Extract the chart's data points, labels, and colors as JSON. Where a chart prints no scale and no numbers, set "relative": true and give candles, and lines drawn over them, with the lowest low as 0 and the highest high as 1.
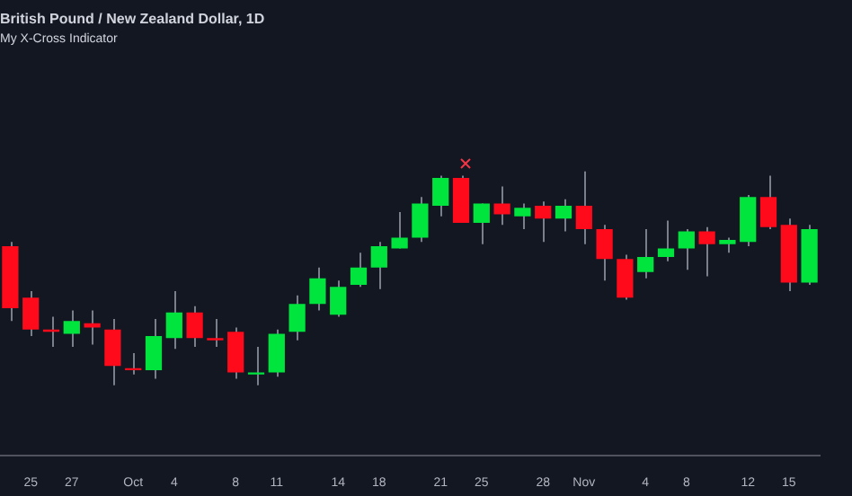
{
  "chart_data": {
    "type": "candlestick",
    "title": "British Pound / New Zealand Dollar, 1D",
    "subtitle": "My X-Cross Indicator",
    "relative": true,
    "grid": false,
    "legend": false,
    "categories": [
      null,
      "25",
      null,
      "27",
      null,
      null,
      "Oct",
      null,
      "4",
      null,
      null,
      "8",
      null,
      "11",
      null,
      null,
      "14",
      null,
      "18",
      null,
      null,
      "21",
      null,
      "25",
      null,
      null,
      "28",
      null,
      "Nov",
      null,
      null,
      "4",
      null,
      "8",
      null,
      null,
      "12",
      null,
      "15",
      null
    ],
    "colors": [
      "#ff0a1a",
      "#ff0a1a",
      "#ff0a1a",
      "#00e53d",
      "#ff0a1a",
      "#ff0a1a",
      "#ff0a1a",
      "#00e53d",
      "#00e53d",
      "#ff0a1a",
      "#ff0a1a",
      "#ff0a1a",
      "#00e53d",
      "#00e53d",
      "#00e53d",
      "#00e53d",
      "#00e53d",
      "#00e53d",
      "#00e53d",
      "#00e53d",
      "#00e53d",
      "#00e53d",
      "#ff0a1a",
      "#00e53d",
      "#ff0a1a",
      "#00e53d",
      "#ff0a1a",
      "#00e53d",
      "#ff0a1a",
      "#ff0a1a",
      "#ff0a1a",
      "#00e53d",
      "#00e53d",
      "#00e53d",
      "#ff0a1a",
      "#00e53d",
      "#00e53d",
      "#ff0a1a",
      "#ff0a1a",
      "#00e53d"
    ],
    "ohlc": [
      [
        0.65,
        0.67,
        0.3,
        0.36
      ],
      [
        0.41,
        0.44,
        0.23,
        0.26
      ],
      [
        0.26,
        0.32,
        0.18,
        0.25
      ],
      [
        0.24,
        0.35,
        0.18,
        0.3
      ],
      [
        0.29,
        0.35,
        0.19,
        0.27
      ],
      [
        0.26,
        0.31,
        0,
        0.09
      ],
      [
        0.08,
        0.15,
        0.05,
        0.07
      ],
      [
        0.07,
        0.31,
        0.03,
        0.23
      ],
      [
        0.22,
        0.44,
        0.17,
        0.34
      ],
      [
        0.34,
        0.37,
        0.18,
        0.22
      ],
      [
        0.22,
        0.31,
        0.18,
        0.21
      ],
      [
        0.25,
        0.27,
        0.03,
        0.06
      ],
      [
        0.05,
        0.18,
        0,
        0.06
      ],
      [
        0.06,
        0.26,
        0.04,
        0.24
      ],
      [
        0.25,
        0.42,
        0.21,
        0.38
      ],
      [
        0.38,
        0.55,
        0.35,
        0.5
      ],
      [
        0.33,
        0.49,
        0.32,
        0.46
      ],
      [
        0.47,
        0.62,
        0.46,
        0.55
      ],
      [
        0.55,
        0.67,
        0.45,
        0.65
      ],
      [
        0.64,
        0.81,
        0.64,
        0.69
      ],
      [
        0.69,
        0.88,
        0.67,
        0.85
      ],
      [
        0.84,
        0.98,
        0.79,
        0.97
      ],
      [
        0.97,
        0.98,
        0.76,
        0.76
      ],
      [
        0.76,
        0.85,
        0.66,
        0.85
      ],
      [
        0.85,
        0.93,
        0.75,
        0.8
      ],
      [
        0.79,
        0.85,
        0.73,
        0.83
      ],
      [
        0.84,
        0.86,
        0.67,
        0.78
      ],
      [
        0.78,
        0.87,
        0.72,
        0.84
      ],
      [
        0.84,
        1.0,
        0.66,
        0.73
      ],
      [
        0.73,
        0.75,
        0.49,
        0.59
      ],
      [
        0.59,
        0.61,
        0.4,
        0.41
      ],
      [
        0.53,
        0.73,
        0.5,
        0.6
      ],
      [
        0.6,
        0.77,
        0.58,
        0.64
      ],
      [
        0.64,
        0.73,
        0.54,
        0.72
      ],
      [
        0.72,
        0.74,
        0.51,
        0.66
      ],
      [
        0.66,
        0.69,
        0.62,
        0.68
      ],
      [
        0.67,
        0.89,
        0.65,
        0.88
      ],
      [
        0.88,
        0.98,
        0.73,
        0.74
      ],
      [
        0.75,
        0.78,
        0.44,
        0.48
      ],
      [
        0.48,
        0.75,
        0.47,
        0.73
      ]
    ]
  }
}
